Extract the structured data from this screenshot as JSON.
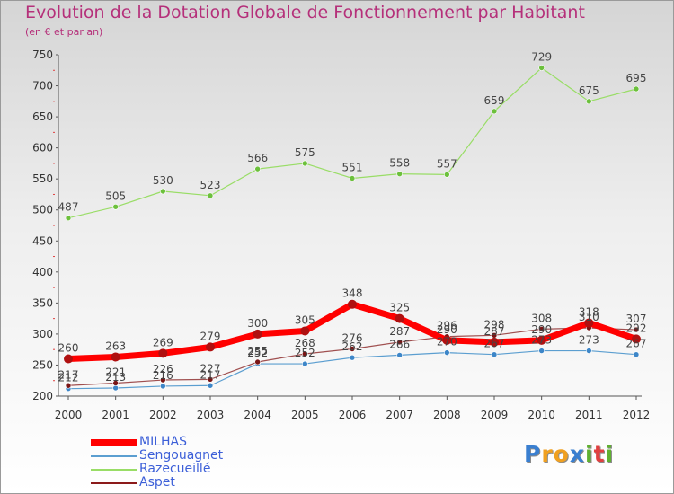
{
  "header": {
    "title": "Evolution de la Dotation Globale de Fonctionnement par Habitant",
    "subtitle": "(en € et par an)"
  },
  "chart_data": {
    "type": "line",
    "title": "Evolution de la Dotation Globale de Fonctionnement par Habitant",
    "ylabel": "(en € et par an)",
    "xlabel": "",
    "x": [
      "2000",
      "2001",
      "2002",
      "2003",
      "2004",
      "2005",
      "2006",
      "2007",
      "2008",
      "2009",
      "2010",
      "2011",
      "2012"
    ],
    "ylim": [
      200,
      750
    ],
    "yticks": [
      200,
      250,
      300,
      350,
      400,
      450,
      500,
      550,
      600,
      650,
      700,
      750
    ],
    "grid": false,
    "legend_position": "bottom-left",
    "series": [
      {
        "name": "MILHAS",
        "color": "#ff0000",
        "values": [
          260,
          263,
          269,
          279,
          300,
          305,
          348,
          325,
          290,
          287,
          290,
          318,
          292
        ]
      },
      {
        "name": "Sengouagnet",
        "color": "#5b9ed0",
        "values": [
          212,
          213,
          216,
          217,
          252,
          252,
          262,
          266,
          270,
          267,
          273,
          273,
          267
        ]
      },
      {
        "name": "Razecueillé",
        "color": "#99dd66",
        "values": [
          487,
          505,
          530,
          523,
          566,
          575,
          551,
          558,
          557,
          659,
          729,
          675,
          695
        ]
      },
      {
        "name": "Aspet",
        "color": "#8b1a1a",
        "values": [
          217,
          221,
          226,
          227,
          255,
          268,
          276,
          287,
          296,
          298,
          308,
          310,
          307
        ]
      }
    ]
  },
  "logo": {
    "letters": [
      "P",
      "r",
      "o",
      "x",
      "i",
      "t",
      "i"
    ]
  }
}
